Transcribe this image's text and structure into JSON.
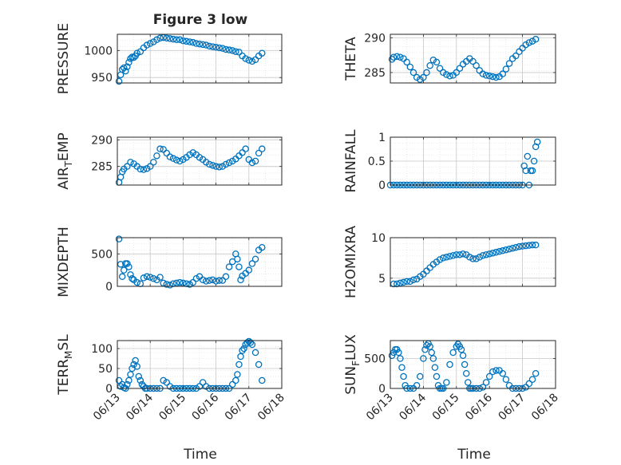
{
  "figure": {
    "title": "Figure 3 low",
    "xlabel": "Time"
  },
  "style": {
    "marker_color": "#0072BD",
    "axis_color": "#262626",
    "grid_color": "#d9d9d9"
  },
  "chart_data": [
    {
      "type": "scatter",
      "ylabel": "PRESSURE",
      "ylim": [
        940,
        1030
      ],
      "yticks": [
        950,
        1000
      ],
      "xlim": [
        0,
        5
      ],
      "xticks": [],
      "grid": true,
      "series": [
        {
          "x": [
            0.05,
            0.1,
            0.15,
            0.2,
            0.25,
            0.3,
            0.35,
            0.4,
            0.45,
            0.5,
            0.55,
            0.6,
            0.7,
            0.8,
            0.9,
            1.0,
            1.1,
            1.2,
            1.3,
            1.4,
            1.5,
            1.6,
            1.7,
            1.8,
            1.9,
            2.0,
            2.1,
            2.2,
            2.3,
            2.4,
            2.5,
            2.6,
            2.7,
            2.8,
            2.9,
            3.0,
            3.1,
            3.2,
            3.3,
            3.4,
            3.5,
            3.6,
            3.7,
            3.8,
            3.9,
            4.0,
            4.1,
            4.2,
            4.3,
            4.4
          ],
          "y": [
            943,
            955,
            965,
            968,
            962,
            970,
            978,
            985,
            988,
            987,
            990,
            995,
            998,
            1005,
            1010,
            1013,
            1016,
            1020,
            1023,
            1024,
            1023,
            1022,
            1021,
            1020,
            1020,
            1018,
            1017,
            1016,
            1015,
            1013,
            1012,
            1011,
            1010,
            1008,
            1007,
            1006,
            1005,
            1004,
            1002,
            1001,
            1000,
            998,
            997,
            990,
            985,
            982,
            980,
            983,
            990,
            995
          ]
        }
      ]
    },
    {
      "type": "scatter",
      "ylabel": "THETA",
      "ylim": [
        283.5,
        290.5
      ],
      "yticks": [
        285,
        290
      ],
      "xlim": [
        0,
        5
      ],
      "xticks": [],
      "grid": true,
      "series": [
        {
          "x": [
            0.05,
            0.1,
            0.2,
            0.3,
            0.4,
            0.5,
            0.6,
            0.7,
            0.8,
            0.9,
            1.0,
            1.1,
            1.2,
            1.3,
            1.4,
            1.5,
            1.6,
            1.7,
            1.8,
            1.9,
            2.0,
            2.1,
            2.2,
            2.3,
            2.4,
            2.5,
            2.6,
            2.7,
            2.8,
            2.9,
            3.0,
            3.1,
            3.2,
            3.3,
            3.4,
            3.5,
            3.6,
            3.7,
            3.8,
            3.9,
            4.0,
            4.1,
            4.2,
            4.3,
            4.4
          ],
          "y": [
            286.9,
            287.2,
            287.3,
            287.2,
            287.0,
            286.5,
            285.8,
            285.0,
            284.3,
            284.0,
            284.3,
            285.0,
            286.0,
            286.8,
            286.5,
            285.6,
            285.0,
            284.7,
            284.5,
            284.6,
            285.0,
            285.6,
            286.2,
            286.6,
            287.0,
            286.6,
            286.0,
            285.3,
            284.8,
            284.6,
            284.5,
            284.4,
            284.3,
            284.4,
            284.8,
            285.5,
            286.3,
            287.0,
            287.4,
            288.0,
            288.5,
            289.0,
            289.3,
            289.5,
            289.8
          ]
        }
      ]
    },
    {
      "type": "scatter",
      "ylabel": "AIR_TEMP",
      "ylim": [
        281.5,
        290.5
      ],
      "yticks": [
        285,
        290
      ],
      "xlim": [
        0,
        5
      ],
      "xticks": [],
      "grid": true,
      "series": [
        {
          "x": [
            0.05,
            0.1,
            0.15,
            0.2,
            0.3,
            0.4,
            0.5,
            0.6,
            0.7,
            0.8,
            0.9,
            1.0,
            1.1,
            1.2,
            1.3,
            1.4,
            1.5,
            1.6,
            1.7,
            1.8,
            1.9,
            2.0,
            2.1,
            2.2,
            2.3,
            2.4,
            2.5,
            2.6,
            2.7,
            2.8,
            2.9,
            3.0,
            3.1,
            3.2,
            3.3,
            3.4,
            3.5,
            3.6,
            3.7,
            3.8,
            3.9,
            4.0,
            4.1,
            4.2,
            4.3,
            4.4
          ],
          "y": [
            282.0,
            283.0,
            284.0,
            284.5,
            285.0,
            285.8,
            285.5,
            285.0,
            284.5,
            284.4,
            284.6,
            285.0,
            285.8,
            287.0,
            288.3,
            288.2,
            287.5,
            286.8,
            286.5,
            286.2,
            286.0,
            286.3,
            286.7,
            287.2,
            287.6,
            287.2,
            286.7,
            286.3,
            285.8,
            285.4,
            285.2,
            285.0,
            284.9,
            285.0,
            285.4,
            285.7,
            286.0,
            286.4,
            287.0,
            287.6,
            288.3,
            286.3,
            285.7,
            286.0,
            287.5,
            288.3
          ]
        }
      ]
    },
    {
      "type": "scatter",
      "ylabel": "RAINFALL",
      "ylim": [
        0,
        1
      ],
      "yticks": [
        0,
        0.5,
        1
      ],
      "xlim": [
        0,
        5
      ],
      "xticks": [],
      "grid": true,
      "series": [
        {
          "x": [
            0.0,
            0.1,
            0.2,
            0.3,
            0.4,
            0.5,
            0.6,
            0.7,
            0.8,
            0.9,
            1.0,
            1.1,
            1.2,
            1.3,
            1.4,
            1.5,
            1.6,
            1.7,
            1.8,
            1.9,
            2.0,
            2.1,
            2.2,
            2.3,
            2.4,
            2.5,
            2.6,
            2.7,
            2.8,
            2.9,
            3.0,
            3.1,
            3.2,
            3.3,
            3.4,
            3.5,
            3.6,
            3.7,
            3.8,
            3.9,
            4.0,
            4.05,
            4.1,
            4.15,
            4.2,
            4.25,
            4.3,
            4.35,
            4.4,
            4.45
          ],
          "y": [
            0,
            0,
            0,
            0,
            0,
            0,
            0,
            0,
            0,
            0,
            0,
            0,
            0,
            0,
            0,
            0,
            0,
            0,
            0,
            0,
            0,
            0,
            0,
            0,
            0,
            0,
            0,
            0,
            0,
            0,
            0,
            0,
            0,
            0,
            0,
            0,
            0,
            0,
            0,
            0,
            0,
            0.4,
            0.3,
            0.6,
            0,
            0.3,
            0.3,
            0.5,
            0.8,
            0.9
          ]
        }
      ]
    },
    {
      "type": "scatter",
      "ylabel": "MIXDEPTH",
      "ylim": [
        0,
        750
      ],
      "yticks": [
        0,
        500
      ],
      "xlim": [
        0,
        5
      ],
      "xticks": [],
      "grid": true,
      "series": [
        {
          "x": [
            0.05,
            0.1,
            0.15,
            0.2,
            0.25,
            0.3,
            0.35,
            0.4,
            0.45,
            0.5,
            0.6,
            0.7,
            0.8,
            0.9,
            1.0,
            1.1,
            1.2,
            1.3,
            1.4,
            1.5,
            1.6,
            1.7,
            1.8,
            1.9,
            2.0,
            2.1,
            2.2,
            2.3,
            2.4,
            2.5,
            2.6,
            2.7,
            2.8,
            2.9,
            3.0,
            3.1,
            3.2,
            3.3,
            3.4,
            3.5,
            3.6,
            3.65,
            3.7,
            3.75,
            3.8,
            3.9,
            4.0,
            4.1,
            4.2,
            4.3,
            4.4
          ],
          "y": [
            730,
            340,
            150,
            250,
            350,
            350,
            300,
            180,
            120,
            100,
            60,
            40,
            130,
            150,
            140,
            120,
            100,
            140,
            50,
            30,
            20,
            40,
            50,
            60,
            50,
            40,
            30,
            60,
            120,
            150,
            100,
            80,
            90,
            100,
            80,
            90,
            90,
            150,
            300,
            380,
            500,
            420,
            300,
            100,
            160,
            200,
            250,
            350,
            420,
            560,
            600
          ]
        }
      ]
    },
    {
      "type": "scatter",
      "ylabel": "H2OMIXRA",
      "ylim": [
        4,
        10
      ],
      "yticks": [
        5,
        10
      ],
      "xlim": [
        0,
        5
      ],
      "xticks": [],
      "grid": true,
      "series": [
        {
          "x": [
            0.1,
            0.2,
            0.3,
            0.4,
            0.5,
            0.6,
            0.7,
            0.8,
            0.9,
            1.0,
            1.1,
            1.2,
            1.3,
            1.4,
            1.5,
            1.6,
            1.7,
            1.8,
            1.9,
            2.0,
            2.1,
            2.2,
            2.3,
            2.4,
            2.5,
            2.6,
            2.7,
            2.8,
            2.9,
            3.0,
            3.1,
            3.2,
            3.3,
            3.4,
            3.5,
            3.6,
            3.7,
            3.8,
            3.9,
            4.0,
            4.1,
            4.2,
            4.3,
            4.4
          ],
          "y": [
            4.3,
            4.3,
            4.4,
            4.5,
            4.6,
            4.6,
            4.8,
            4.9,
            5.2,
            5.5,
            5.9,
            6.3,
            6.7,
            7.0,
            7.3,
            7.5,
            7.6,
            7.7,
            7.8,
            7.9,
            7.9,
            8.0,
            7.9,
            7.6,
            7.4,
            7.4,
            7.6,
            7.8,
            7.9,
            8.0,
            8.1,
            8.2,
            8.3,
            8.4,
            8.5,
            8.6,
            8.7,
            8.8,
            8.9,
            8.95,
            9.0,
            9.05,
            9.1,
            9.1
          ]
        }
      ]
    },
    {
      "type": "scatter",
      "ylabel": "TERR_MSL",
      "ylim": [
        0,
        120
      ],
      "yticks": [
        0,
        50,
        100
      ],
      "xlim": [
        0,
        5
      ],
      "xticks": [
        "06/13",
        "06/14",
        "06/15",
        "06/16",
        "06/17",
        "06/18"
      ],
      "grid": true,
      "series": [
        {
          "x": [
            0.05,
            0.1,
            0.15,
            0.2,
            0.25,
            0.3,
            0.35,
            0.4,
            0.45,
            0.5,
            0.55,
            0.6,
            0.65,
            0.7,
            0.75,
            0.8,
            0.85,
            0.9,
            1.0,
            1.1,
            1.2,
            1.3,
            1.4,
            1.5,
            1.6,
            1.7,
            1.8,
            1.9,
            2.0,
            2.1,
            2.2,
            2.3,
            2.4,
            2.5,
            2.6,
            2.7,
            2.8,
            2.9,
            3.0,
            3.1,
            3.2,
            3.3,
            3.4,
            3.5,
            3.6,
            3.65,
            3.7,
            3.75,
            3.8,
            3.85,
            3.9,
            3.95,
            4.0,
            4.05,
            4.1,
            4.2,
            4.3,
            4.4
          ],
          "y": [
            20,
            5,
            10,
            2,
            0,
            10,
            20,
            35,
            50,
            60,
            70,
            55,
            30,
            20,
            10,
            5,
            0,
            0,
            0,
            0,
            0,
            0,
            20,
            15,
            5,
            0,
            0,
            0,
            0,
            0,
            0,
            0,
            0,
            5,
            15,
            5,
            0,
            0,
            0,
            0,
            0,
            0,
            0,
            10,
            20,
            35,
            60,
            80,
            95,
            100,
            110,
            115,
            118,
            115,
            110,
            90,
            60,
            20
          ]
        }
      ]
    },
    {
      "type": "scatter",
      "ylabel": "SUN_FLUX",
      "ylim": [
        0,
        800
      ],
      "yticks": [
        0,
        500
      ],
      "xlim": [
        0,
        5
      ],
      "xticks": [
        "06/13",
        "06/14",
        "06/15",
        "06/16",
        "06/17",
        "06/18"
      ],
      "grid": true,
      "series": [
        {
          "x": [
            0.05,
            0.1,
            0.15,
            0.2,
            0.25,
            0.3,
            0.35,
            0.4,
            0.45,
            0.5,
            0.6,
            0.7,
            0.8,
            0.9,
            1.0,
            1.05,
            1.1,
            1.15,
            1.2,
            1.25,
            1.3,
            1.35,
            1.4,
            1.45,
            1.5,
            1.55,
            1.6,
            1.7,
            1.8,
            1.9,
            2.0,
            2.05,
            2.1,
            2.15,
            2.2,
            2.25,
            2.3,
            2.35,
            2.4,
            2.45,
            2.5,
            2.6,
            2.7,
            2.8,
            2.9,
            3.0,
            3.1,
            3.2,
            3.3,
            3.4,
            3.5,
            3.6,
            3.7,
            3.8,
            3.9,
            4.0,
            4.1,
            4.2,
            4.3,
            4.4
          ],
          "y": [
            550,
            600,
            650,
            650,
            600,
            500,
            350,
            200,
            50,
            0,
            0,
            0,
            50,
            200,
            500,
            650,
            720,
            750,
            700,
            600,
            500,
            350,
            200,
            50,
            0,
            0,
            0,
            100,
            400,
            600,
            700,
            740,
            700,
            650,
            550,
            400,
            250,
            100,
            0,
            0,
            0,
            0,
            0,
            20,
            100,
            200,
            280,
            300,
            300,
            250,
            150,
            50,
            0,
            0,
            0,
            0,
            20,
            80,
            150,
            250
          ]
        }
      ]
    }
  ]
}
